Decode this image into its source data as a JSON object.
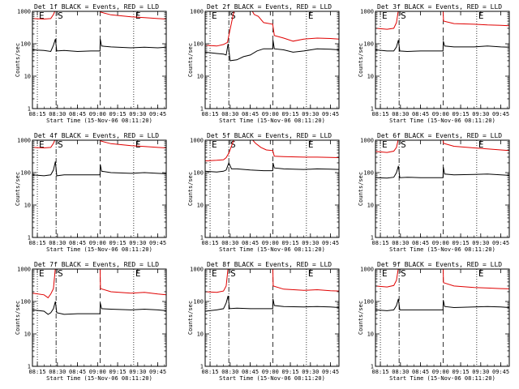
{
  "chart_data": {
    "type": "line",
    "layout": "3x3 grid of log-scale time series",
    "x_label": "Start Time (15-Nov-06 08:11:20)",
    "y_label": "Counts/sec",
    "x_ticks": [
      "08:15",
      "08:30",
      "08:45",
      "09:00",
      "09:15",
      "09:30",
      "09:45"
    ],
    "x_tick_minutes": [
      0,
      15,
      30,
      45,
      60,
      75,
      90
    ],
    "x_range_minutes": [
      -3.67,
      96.33
    ],
    "y_scale": "log",
    "y_range": [
      1,
      1000
    ],
    "y_ticks": [
      "1",
      "10",
      "100",
      "1000"
    ],
    "series_colors": {
      "events": "#000000",
      "lld": "#e00000"
    },
    "markers": [
      {
        "label": "E",
        "minute": 0,
        "style": "dotted"
      },
      {
        "label": "S",
        "minute": 14,
        "style": "dash-dot"
      },
      {
        "label": "",
        "minute": 47,
        "style": "dashed"
      },
      {
        "label": "E",
        "minute": 72,
        "style": "dotted"
      }
    ],
    "panels": [
      {
        "title": "Det 1f BLACK = Events, RED = LLD",
        "events": [
          [
            -3.7,
            65
          ],
          [
            5,
            62
          ],
          [
            10,
            58
          ],
          [
            12,
            90
          ],
          [
            13.5,
            140
          ],
          [
            14.5,
            60
          ],
          [
            20,
            62
          ],
          [
            25,
            60
          ],
          [
            30,
            58
          ],
          [
            40,
            60
          ],
          [
            46.8,
            60
          ],
          [
            47,
            140
          ],
          [
            48,
            85
          ],
          [
            55,
            80
          ],
          [
            70,
            75
          ],
          [
            80,
            78
          ],
          [
            90,
            75
          ],
          [
            96.3,
            78
          ]
        ],
        "lld": [
          [
            -3.7,
            600
          ],
          [
            5,
            580
          ],
          [
            10,
            600
          ],
          [
            12,
            800
          ],
          [
            13.5,
            1100
          ],
          [
            46.9,
            1100
          ],
          [
            47.2,
            950
          ],
          [
            55,
            780
          ],
          [
            70,
            680
          ],
          [
            80,
            640
          ],
          [
            90,
            600
          ],
          [
            96.3,
            580
          ]
        ]
      },
      {
        "title": "Det 2f BLACK = Events, RED = LLD",
        "events": [
          [
            -3.7,
            55
          ],
          [
            5,
            50
          ],
          [
            10,
            48
          ],
          [
            12,
            45
          ],
          [
            13.5,
            100
          ],
          [
            15,
            30
          ],
          [
            20,
            32
          ],
          [
            25,
            40
          ],
          [
            30,
            45
          ],
          [
            35,
            60
          ],
          [
            40,
            70
          ],
          [
            46.8,
            70
          ],
          [
            47,
            130
          ],
          [
            48,
            70
          ],
          [
            55,
            65
          ],
          [
            62,
            55
          ],
          [
            70,
            60
          ],
          [
            80,
            70
          ],
          [
            90,
            68
          ],
          [
            96.3,
            65
          ]
        ],
        "lld": [
          [
            -3.7,
            90
          ],
          [
            5,
            85
          ],
          [
            10,
            95
          ],
          [
            13,
            110
          ],
          [
            14,
            180
          ],
          [
            18,
            1100
          ],
          [
            31,
            1100
          ],
          [
            33,
            800
          ],
          [
            36,
            700
          ],
          [
            40,
            450
          ],
          [
            46.8,
            400
          ],
          [
            48,
            180
          ],
          [
            55,
            150
          ],
          [
            62,
            120
          ],
          [
            70,
            140
          ],
          [
            80,
            150
          ],
          [
            90,
            145
          ],
          [
            96.3,
            140
          ]
        ]
      },
      {
        "title": "Det 3f BLACK = Events, RED = LLD",
        "events": [
          [
            -3.7,
            65
          ],
          [
            5,
            60
          ],
          [
            10,
            60
          ],
          [
            12,
            80
          ],
          [
            13.5,
            130
          ],
          [
            14.5,
            60
          ],
          [
            20,
            58
          ],
          [
            30,
            60
          ],
          [
            46.8,
            60
          ],
          [
            47,
            120
          ],
          [
            48,
            85
          ],
          [
            55,
            80
          ],
          [
            70,
            80
          ],
          [
            80,
            85
          ],
          [
            90,
            80
          ],
          [
            96.3,
            78
          ]
        ],
        "lld": [
          [
            -3.7,
            300
          ],
          [
            5,
            280
          ],
          [
            10,
            300
          ],
          [
            12,
            450
          ],
          [
            13.5,
            1100
          ],
          [
            46.9,
            1100
          ],
          [
            47.2,
            500
          ],
          [
            55,
            420
          ],
          [
            70,
            400
          ],
          [
            80,
            380
          ],
          [
            90,
            370
          ],
          [
            96.3,
            360
          ]
        ]
      },
      {
        "title": "Det 4f BLACK = Events, RED = LLD",
        "events": [
          [
            -3.7,
            85
          ],
          [
            5,
            80
          ],
          [
            10,
            85
          ],
          [
            12,
            120
          ],
          [
            13.5,
            220
          ],
          [
            14.5,
            80
          ],
          [
            20,
            85
          ],
          [
            30,
            85
          ],
          [
            46.8,
            85
          ],
          [
            47,
            180
          ],
          [
            48,
            110
          ],
          [
            55,
            100
          ],
          [
            70,
            95
          ],
          [
            80,
            100
          ],
          [
            90,
            95
          ],
          [
            96.3,
            92
          ]
        ],
        "lld": [
          [
            -3.7,
            600
          ],
          [
            5,
            580
          ],
          [
            10,
            600
          ],
          [
            12,
            800
          ],
          [
            13.5,
            1100
          ],
          [
            46.9,
            1100
          ],
          [
            47.2,
            950
          ],
          [
            55,
            780
          ],
          [
            70,
            680
          ],
          [
            80,
            640
          ],
          [
            90,
            600
          ],
          [
            96.3,
            580
          ]
        ]
      },
      {
        "title": "Det 5f BLACK = Events, RED = LLD",
        "events": [
          [
            -3.7,
            110
          ],
          [
            5,
            105
          ],
          [
            10,
            110
          ],
          [
            12,
            120
          ],
          [
            14,
            200
          ],
          [
            16,
            130
          ],
          [
            20,
            130
          ],
          [
            30,
            120
          ],
          [
            40,
            115
          ],
          [
            46.8,
            115
          ],
          [
            47,
            200
          ],
          [
            48,
            140
          ],
          [
            55,
            130
          ],
          [
            70,
            125
          ],
          [
            80,
            130
          ],
          [
            90,
            128
          ],
          [
            96.3,
            125
          ]
        ],
        "lld": [
          [
            -3.7,
            230
          ],
          [
            5,
            240
          ],
          [
            10,
            250
          ],
          [
            12,
            290
          ],
          [
            14,
            400
          ],
          [
            18,
            1100
          ],
          [
            31,
            1100
          ],
          [
            34,
            800
          ],
          [
            38,
            600
          ],
          [
            42,
            500
          ],
          [
            46.8,
            480
          ],
          [
            48,
            320
          ],
          [
            55,
            310
          ],
          [
            70,
            300
          ],
          [
            80,
            300
          ],
          [
            90,
            295
          ],
          [
            96.3,
            290
          ]
        ]
      },
      {
        "title": "Det 6f BLACK = Events, RED = LLD",
        "events": [
          [
            -3.7,
            70
          ],
          [
            5,
            68
          ],
          [
            10,
            72
          ],
          [
            12,
            100
          ],
          [
            13.5,
            160
          ],
          [
            14.5,
            70
          ],
          [
            20,
            72
          ],
          [
            30,
            70
          ],
          [
            46.8,
            70
          ],
          [
            47,
            150
          ],
          [
            48,
            90
          ],
          [
            55,
            85
          ],
          [
            70,
            88
          ],
          [
            80,
            90
          ],
          [
            90,
            85
          ],
          [
            96.3,
            82
          ]
        ],
        "lld": [
          [
            -3.7,
            450
          ],
          [
            5,
            420
          ],
          [
            10,
            460
          ],
          [
            12,
            600
          ],
          [
            13.5,
            1100
          ],
          [
            46.9,
            1100
          ],
          [
            47.2,
            800
          ],
          [
            55,
            650
          ],
          [
            70,
            580
          ],
          [
            80,
            540
          ],
          [
            90,
            500
          ],
          [
            96.3,
            480
          ]
        ]
      },
      {
        "title": "Det 7f BLACK = Events, RED = LLD",
        "events": [
          [
            -3.7,
            55
          ],
          [
            5,
            50
          ],
          [
            8,
            40
          ],
          [
            10,
            45
          ],
          [
            12,
            60
          ],
          [
            13.5,
            100
          ],
          [
            14.5,
            45
          ],
          [
            20,
            40
          ],
          [
            30,
            42
          ],
          [
            46.8,
            42
          ],
          [
            47,
            90
          ],
          [
            48,
            60
          ],
          [
            55,
            58
          ],
          [
            70,
            55
          ],
          [
            80,
            58
          ],
          [
            90,
            55
          ],
          [
            96.3,
            52
          ]
        ],
        "lld": [
          [
            -3.7,
            180
          ],
          [
            5,
            160
          ],
          [
            8,
            130
          ],
          [
            10,
            170
          ],
          [
            12,
            250
          ],
          [
            13.5,
            1100
          ],
          [
            46.9,
            1100
          ],
          [
            47.2,
            250
          ],
          [
            55,
            200
          ],
          [
            70,
            180
          ],
          [
            80,
            190
          ],
          [
            90,
            170
          ],
          [
            96.3,
            160
          ]
        ]
      },
      {
        "title": "Det 8f BLACK = Events, RED = LLD",
        "events": [
          [
            -3.7,
            50
          ],
          [
            5,
            55
          ],
          [
            10,
            60
          ],
          [
            12,
            90
          ],
          [
            13.5,
            150
          ],
          [
            14.5,
            60
          ],
          [
            20,
            62
          ],
          [
            30,
            60
          ],
          [
            46.8,
            60
          ],
          [
            47,
            120
          ],
          [
            48,
            75
          ],
          [
            55,
            70
          ],
          [
            70,
            68
          ],
          [
            80,
            70
          ],
          [
            90,
            68
          ],
          [
            96.3,
            65
          ]
        ],
        "lld": [
          [
            -3.7,
            200
          ],
          [
            5,
            190
          ],
          [
            10,
            210
          ],
          [
            12,
            300
          ],
          [
            13.5,
            1100
          ],
          [
            46.9,
            1100
          ],
          [
            47.2,
            300
          ],
          [
            55,
            240
          ],
          [
            70,
            220
          ],
          [
            80,
            230
          ],
          [
            90,
            215
          ],
          [
            96.3,
            210
          ]
        ]
      },
      {
        "title": "Det 9f BLACK = Events, RED = LLD",
        "events": [
          [
            -3.7,
            55
          ],
          [
            5,
            52
          ],
          [
            10,
            55
          ],
          [
            12,
            75
          ],
          [
            13.5,
            120
          ],
          [
            14.5,
            55
          ],
          [
            20,
            55
          ],
          [
            30,
            55
          ],
          [
            46.8,
            55
          ],
          [
            47,
            110
          ],
          [
            48,
            70
          ],
          [
            55,
            65
          ],
          [
            70,
            68
          ],
          [
            80,
            70
          ],
          [
            90,
            68
          ],
          [
            96.3,
            65
          ]
        ],
        "lld": [
          [
            -3.7,
            300
          ],
          [
            5,
            280
          ],
          [
            10,
            310
          ],
          [
            12,
            450
          ],
          [
            13.5,
            1100
          ],
          [
            46.9,
            1100
          ],
          [
            47.2,
            380
          ],
          [
            55,
            300
          ],
          [
            70,
            270
          ],
          [
            80,
            260
          ],
          [
            90,
            250
          ],
          [
            96.3,
            245
          ]
        ]
      }
    ]
  }
}
